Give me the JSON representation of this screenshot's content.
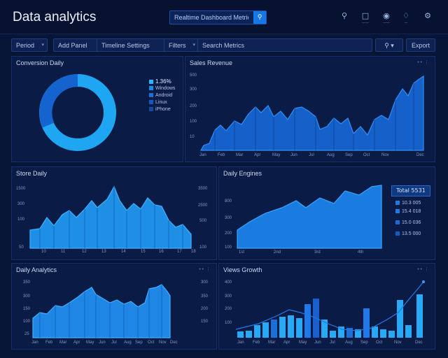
{
  "header": {
    "title": "Data analytics",
    "search_value": "Realtime Dashboard Metrics",
    "icons": [
      "search-icon",
      "document-icon",
      "globe-icon",
      "bell-icon",
      "settings-icon"
    ]
  },
  "toolbar": {
    "items": [
      {
        "label": "Period",
        "name": "period-dropdown"
      },
      {
        "label": "Add Panel",
        "name": "add-panel-button"
      },
      {
        "label": "Timeline Settings",
        "name": "timeline-settings-dropdown"
      },
      {
        "label": "Filters",
        "name": "filters-dropdown"
      },
      {
        "label": "Search Metrics",
        "name": "search-metrics-field"
      }
    ],
    "export_label": "Export"
  },
  "colors": {
    "accent": "#1677e6",
    "bright": "#2bb4ff",
    "panel": "#0a1c46",
    "background": "#071536"
  },
  "panels": {
    "p1": {
      "title": "Conversion Daily",
      "legend": [
        "1.36%",
        "Windows",
        "Android",
        "Linux",
        "iPhone"
      ]
    },
    "p2": {
      "title": "Sales Revenue",
      "y_ticks": [
        "500",
        "300",
        "200",
        "100",
        "10"
      ],
      "x_ticks": [
        "Jan",
        "Feb",
        "Mar",
        "Apr",
        "May",
        "Jun",
        "Jul",
        "Aug",
        "Sep",
        "Oct",
        "Nov",
        "Dec"
      ]
    },
    "p3": {
      "title": "Store Daily",
      "y_left": [
        "1500",
        "300",
        "100",
        "50"
      ],
      "y_right": [
        "3500",
        "2500",
        "500",
        "100"
      ],
      "x_ticks": [
        "10",
        "11",
        "12",
        "13",
        "14",
        "15",
        "16",
        "17",
        "18"
      ]
    },
    "p4": {
      "title": "Daily Engines",
      "y_ticks": [
        "800",
        "300",
        "200",
        "100"
      ],
      "x_ticks": [
        "1st",
        "2nd",
        "3rd",
        "4th"
      ],
      "legend_head": "Total 5531",
      "legend": [
        "10.3 005",
        "15.4 018",
        "15.0 036",
        "13.5 000"
      ]
    },
    "p5": {
      "title": "Daily Analytics",
      "y_left": [
        "350",
        "300",
        "150",
        "100",
        "25"
      ],
      "y_right": [
        "300",
        "350",
        "200",
        "150"
      ],
      "x_ticks": [
        "Jan",
        "Feb",
        "Mar",
        "Apr",
        "May",
        "Jun",
        "Jul",
        "Aug",
        "Sep",
        "Oct",
        "Nov",
        "Dec"
      ]
    },
    "p6": {
      "title": "Views Growth",
      "y_ticks": [
        "400",
        "300",
        "200",
        "100"
      ],
      "x_ticks": [
        "Jan",
        "Feb",
        "Mar",
        "Apr",
        "May",
        "Jun",
        "Jul",
        "Aug",
        "Sep",
        "Oct",
        "Nov",
        "Dec"
      ]
    }
  }
}
